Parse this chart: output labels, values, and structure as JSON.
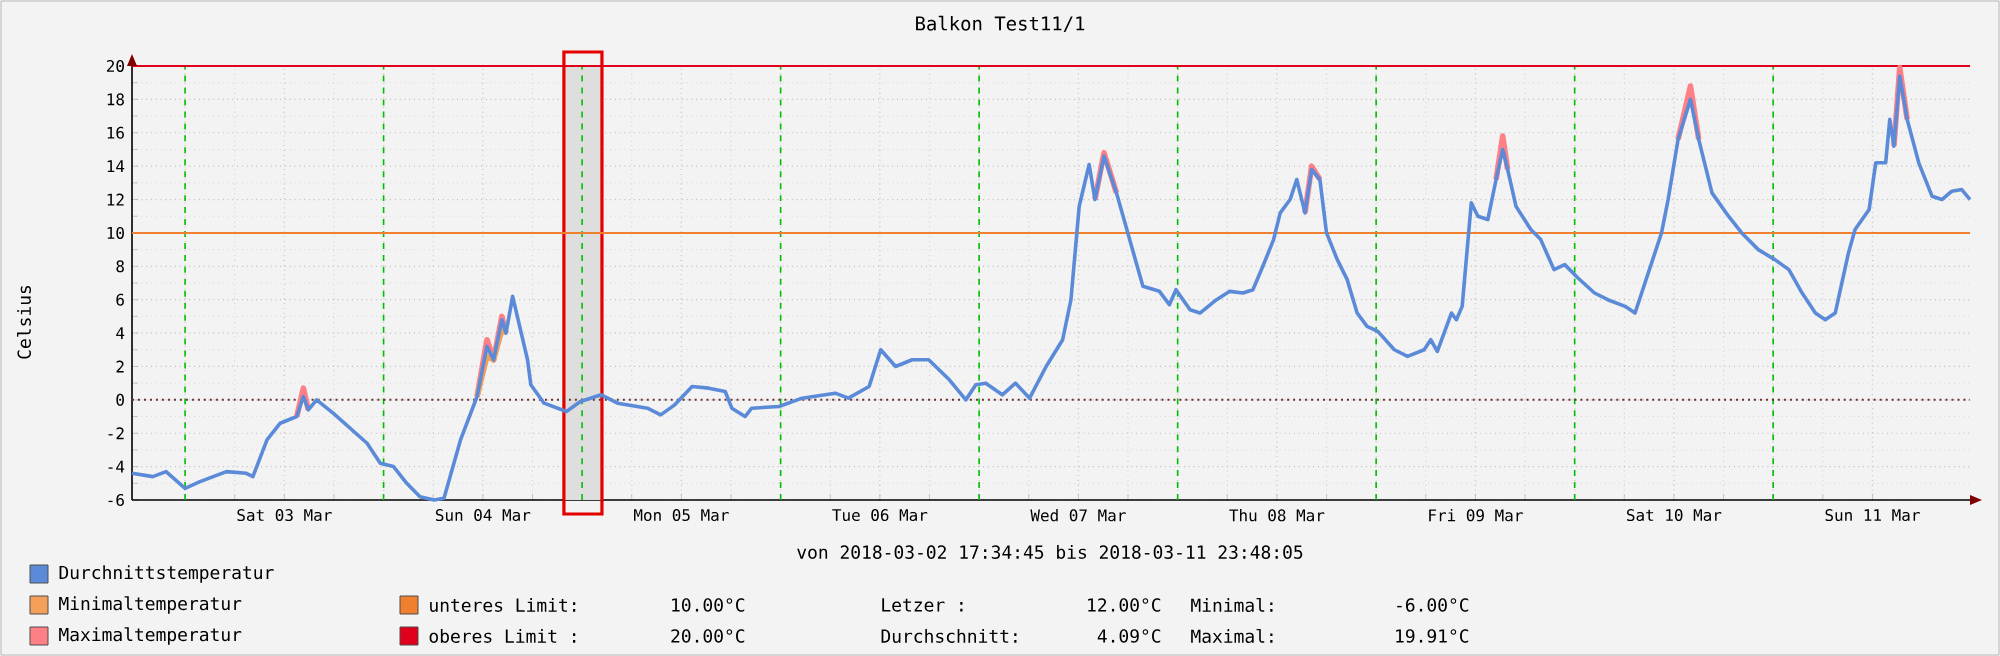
{
  "chart_data": {
    "type": "line",
    "title": "Balkon Test11/1",
    "xlabel": "von 2018-03-02 17:34:45 bis 2018-03-11 23:48:05",
    "ylabel": "Celsius",
    "x": [
      "2018-03-02T17:35",
      "2018-03-02T20:06",
      "2018-03-02T21:42",
      "2018-03-03T00:00",
      "2018-03-03T01:48",
      "2018-03-03T05:00",
      "2018-03-03T07:24",
      "2018-03-03T08:12",
      "2018-03-03T09:54",
      "2018-03-03T11:30",
      "2018-03-03T13:30",
      "2018-03-03T14:18",
      "2018-03-03T14:54",
      "2018-03-03T15:54",
      "2018-03-03T17:54",
      "2018-03-03T22:00",
      "2018-03-03T23:36",
      "2018-03-04T01:12",
      "2018-03-04T02:48",
      "2018-03-04T04:24",
      "2018-03-04T06:06",
      "2018-03-04T07:18",
      "2018-03-04T09:18",
      "2018-03-04T11:18",
      "2018-03-04T12:30",
      "2018-03-04T13:18",
      "2018-03-04T14:18",
      "2018-03-04T14:48",
      "2018-03-04T15:36",
      "2018-03-04T17:24",
      "2018-03-04T17:48",
      "2018-03-04T19:24",
      "2018-03-04T22:06",
      "2018-03-04T23:48",
      "2018-03-05T02:18",
      "2018-03-05T04:18",
      "2018-03-05T07:54",
      "2018-03-05T09:30",
      "2018-03-05T11:12",
      "2018-03-05T13:18",
      "2018-03-05T15:18",
      "2018-03-05T17:18",
      "2018-03-05T18:06",
      "2018-03-05T19:42",
      "2018-03-05T20:30",
      "2018-03-05T23:48",
      "2018-03-06T02:36",
      "2018-03-06T06:36",
      "2018-03-06T08:12",
      "2018-03-06T10:42",
      "2018-03-06T12:06",
      "2018-03-06T13:54",
      "2018-03-06T15:54",
      "2018-03-06T17:54",
      "2018-03-06T20:24",
      "2018-03-06T22:24",
      "2018-03-06T23:36",
      "2018-03-07T00:48",
      "2018-03-07T02:48",
      "2018-03-07T04:24",
      "2018-03-07T06:06",
      "2018-03-07T08:06",
      "2018-03-07T10:06",
      "2018-03-07T11:06",
      "2018-03-07T12:06",
      "2018-03-07T13:18",
      "2018-03-07T14:00",
      "2018-03-07T15:06",
      "2018-03-07T16:36",
      "2018-03-07T18:12",
      "2018-03-07T19:48",
      "2018-03-07T21:48",
      "2018-03-07T23:00",
      "2018-03-07T23:48",
      "2018-03-08T01:30",
      "2018-03-08T02:42",
      "2018-03-08T04:42",
      "2018-03-08T06:18",
      "2018-03-08T07:54",
      "2018-03-08T09:06",
      "2018-03-08T10:18",
      "2018-03-08T11:36",
      "2018-03-08T12:24",
      "2018-03-08T13:36",
      "2018-03-08T14:24",
      "2018-03-08T15:24",
      "2018-03-08T16:12",
      "2018-03-08T17:12",
      "2018-03-08T18:00",
      "2018-03-08T19:18",
      "2018-03-08T20:30",
      "2018-03-08T21:42",
      "2018-03-08T22:54",
      "2018-03-09T00:12",
      "2018-03-09T02:12",
      "2018-03-09T03:48",
      "2018-03-09T05:48",
      "2018-03-09T06:36",
      "2018-03-09T07:24",
      "2018-03-09T09:06",
      "2018-03-09T09:42",
      "2018-03-09T10:24",
      "2018-03-09T11:30",
      "2018-03-09T12:18",
      "2018-03-09T13:30",
      "2018-03-09T14:30",
      "2018-03-09T15:18",
      "2018-03-09T15:54",
      "2018-03-09T16:54",
      "2018-03-09T18:42",
      "2018-03-09T19:54",
      "2018-03-09T21:30",
      "2018-03-09T22:48",
      "2018-03-10T00:24",
      "2018-03-10T02:24",
      "2018-03-10T04:00",
      "2018-03-10T06:06",
      "2018-03-10T07:18",
      "2018-03-10T08:54",
      "2018-03-10T10:30",
      "2018-03-10T11:18",
      "2018-03-10T12:30",
      "2018-03-10T14:00",
      "2018-03-10T15:00",
      "2018-03-10T16:36",
      "2018-03-10T18:36",
      "2018-03-10T20:12",
      "2018-03-10T22:12",
      "2018-03-11T00:12",
      "2018-03-11T01:54",
      "2018-03-11T03:30",
      "2018-03-11T05:06",
      "2018-03-11T06:18",
      "2018-03-11T07:30",
      "2018-03-11T09:06",
      "2018-03-11T09:54",
      "2018-03-11T11:36",
      "2018-03-11T12:24",
      "2018-03-11T13:36",
      "2018-03-11T14:06",
      "2018-03-11T14:36",
      "2018-03-11T15:18",
      "2018-03-11T16:12",
      "2018-03-11T17:36",
      "2018-03-11T19:12",
      "2018-03-11T20:24",
      "2018-03-11T21:36",
      "2018-03-11T22:48",
      "2018-03-11T23:48"
    ],
    "series": [
      {
        "name": "Durchnittstemperatur",
        "color": "#5b8bd8",
        "values": [
          -4.4,
          -4.6,
          -4.3,
          -5.3,
          -4.9,
          -4.3,
          -4.4,
          -4.6,
          -2.4,
          -1.4,
          -1.0,
          0.2,
          -0.6,
          0,
          -0.8,
          -2.6,
          -3.8,
          -4.0,
          -5.0,
          -5.8,
          -6.0,
          -5.9,
          -2.4,
          0.2,
          3.2,
          2.4,
          4.8,
          4.0,
          6.2,
          2.4,
          0.9,
          -0.2,
          -0.7,
          -0.1,
          0.3,
          -0.2,
          -0.5,
          -0.9,
          -0.3,
          0.8,
          0.7,
          0.5,
          -0.5,
          -1.0,
          -0.5,
          -0.4,
          0.1,
          0.4,
          0.1,
          0.8,
          3.0,
          2.0,
          2.4,
          2.4,
          1.2,
          0,
          0.9,
          1.0,
          0.3,
          1.0,
          0.1,
          2.0,
          3.6,
          6.0,
          11.6,
          14.1,
          12.0,
          14.6,
          12.4,
          9.6,
          6.8,
          6.5,
          5.7,
          6.6,
          5.4,
          5.2,
          6.0,
          6.5,
          6.4,
          6.6,
          8.0,
          9.6,
          11.2,
          12.0,
          13.2,
          11.2,
          13.8,
          13.2,
          10.0,
          8.4,
          7.2,
          5.2,
          4.4,
          4.1,
          3.0,
          2.6,
          3.0,
          3.6,
          2.9,
          5.2,
          4.8,
          5.6,
          11.8,
          11.0,
          10.8,
          13.2,
          15.0,
          13.8,
          11.6,
          10.2,
          9.6,
          7.8,
          8.1,
          7.3,
          6.4,
          6.0,
          5.6,
          5.2,
          7.6,
          10.0,
          12.0,
          15.6,
          18.0,
          15.6,
          12.4,
          11.0,
          10.0,
          9.0,
          8.4,
          7.8,
          6.4,
          5.2,
          4.8,
          5.2,
          8.8,
          10.2,
          11.4,
          14.2,
          14.2,
          16.8,
          15.2,
          19.4,
          16.8,
          14.2,
          12.2,
          12.0,
          12.5,
          12.6,
          12.0
        ]
      },
      {
        "name": "Minimaltemperatur",
        "color": "#f5a05a",
        "values": [
          null,
          null,
          null,
          null,
          null,
          null,
          null,
          null,
          null,
          null,
          null,
          null,
          null,
          null,
          null,
          null,
          null,
          null,
          null,
          null,
          null,
          null,
          null,
          0.2,
          2.6,
          2.4,
          4.2,
          4.0,
          null,
          null,
          null,
          null,
          null,
          null,
          null,
          null,
          null,
          null,
          null,
          null,
          null,
          null,
          null,
          null,
          null,
          null,
          null,
          null,
          null,
          null,
          null,
          null,
          null,
          null,
          null,
          null,
          null,
          null,
          null,
          null,
          null,
          null,
          null,
          null,
          null,
          null,
          null,
          null,
          null,
          null,
          null,
          null,
          null,
          null,
          null,
          null,
          null,
          null,
          null,
          null,
          null,
          null,
          null,
          null,
          null,
          null,
          null,
          null,
          null,
          null,
          null,
          null,
          null,
          null,
          null,
          null,
          null,
          null,
          null,
          null,
          null,
          null,
          null,
          null,
          null,
          null,
          null,
          null,
          null,
          null,
          null,
          null,
          null,
          null,
          null,
          null,
          null,
          null,
          null,
          null,
          null,
          null,
          null,
          null,
          null,
          null,
          null,
          null,
          null,
          null,
          null,
          null,
          null,
          null,
          null,
          null,
          null,
          null,
          null,
          null,
          null,
          null,
          null,
          null,
          null,
          null,
          null,
          null,
          null
        ]
      },
      {
        "name": "Maximaltemperatur",
        "color": "#ff7f86",
        "values": [
          null,
          null,
          null,
          null,
          null,
          null,
          null,
          null,
          null,
          null,
          -1.0,
          0.7,
          -0.6,
          null,
          null,
          null,
          null,
          null,
          null,
          null,
          null,
          null,
          null,
          0.2,
          3.6,
          2.4,
          5.0,
          4.0,
          null,
          null,
          null,
          null,
          null,
          null,
          null,
          null,
          null,
          null,
          null,
          null,
          null,
          null,
          null,
          null,
          null,
          null,
          null,
          null,
          null,
          null,
          null,
          null,
          null,
          null,
          null,
          null,
          null,
          null,
          null,
          null,
          null,
          null,
          null,
          null,
          null,
          null,
          12.0,
          14.8,
          12.4,
          null,
          null,
          null,
          null,
          null,
          null,
          null,
          null,
          null,
          null,
          null,
          null,
          null,
          null,
          null,
          null,
          11.2,
          14.0,
          13.2,
          null,
          null,
          null,
          null,
          null,
          null,
          null,
          null,
          null,
          null,
          null,
          null,
          null,
          null,
          null,
          null,
          null,
          13.2,
          15.8,
          13.8,
          null,
          null,
          null,
          null,
          null,
          null,
          null,
          null,
          null,
          null,
          null,
          null,
          null,
          15.6,
          18.8,
          15.6,
          null,
          null,
          null,
          null,
          null,
          null,
          null,
          null,
          null,
          null,
          null,
          null,
          null,
          null,
          null,
          null,
          15.2,
          19.9,
          16.8,
          null,
          null,
          null,
          null,
          null,
          null
        ]
      }
    ],
    "xlim": [
      "2018-03-02T17:35",
      "2018-03-11T23:48"
    ],
    "xticks": [
      {
        "value": "2018-03-03T00:00",
        "label": null
      },
      {
        "value": "2018-03-03T12:00",
        "label": "Sat 03 Mar"
      },
      {
        "value": "2018-03-04T00:00",
        "label": null
      },
      {
        "value": "2018-03-04T12:00",
        "label": "Sun 04 Mar"
      },
      {
        "value": "2018-03-05T00:00",
        "label": null
      },
      {
        "value": "2018-03-05T12:00",
        "label": "Mon 05 Mar"
      },
      {
        "value": "2018-03-06T00:00",
        "label": null
      },
      {
        "value": "2018-03-06T12:00",
        "label": "Tue 06 Mar"
      },
      {
        "value": "2018-03-07T00:00",
        "label": null
      },
      {
        "value": "2018-03-07T12:00",
        "label": "Wed 07 Mar"
      },
      {
        "value": "2018-03-08T00:00",
        "label": null
      },
      {
        "value": "2018-03-08T12:00",
        "label": "Thu 08 Mar"
      },
      {
        "value": "2018-03-09T00:00",
        "label": null
      },
      {
        "value": "2018-03-09T12:00",
        "label": "Fri 09 Mar"
      },
      {
        "value": "2018-03-10T00:00",
        "label": null
      },
      {
        "value": "2018-03-10T12:00",
        "label": "Sat 10 Mar"
      },
      {
        "value": "2018-03-11T00:00",
        "label": null
      },
      {
        "value": "2018-03-11T12:00",
        "label": "Sun 11 Mar"
      }
    ],
    "ylim": [
      -6,
      20
    ],
    "yticks": [
      -6,
      -4,
      -2,
      0,
      2,
      4,
      6,
      8,
      10,
      12,
      14,
      16,
      18,
      20
    ],
    "ref_lines": [
      {
        "axis": "y",
        "value": 10,
        "label": "unteres Limit:",
        "color": "#f07f30"
      },
      {
        "axis": "y",
        "value": 20,
        "label": "oberes Limit :",
        "color": "#e0001c"
      },
      {
        "axis": "y",
        "value": 0,
        "color": "#6a3030",
        "line_style": "dotted"
      }
    ],
    "bands": [
      {
        "axis": "x",
        "from": "2018-03-04T21:48",
        "to": "2018-03-05T02:24",
        "color": "#dedede"
      }
    ],
    "annotations": [
      "10.00°C",
      "20.00°C",
      "Letzer      :",
      "12.00°C",
      "Durchschnitt:",
      "4.09°C",
      "Minimal:",
      "-6.00°C",
      "Maximal:",
      "19.91°C"
    ],
    "grid": true,
    "legend": "bottom left",
    "marker": "none",
    "line_style": "solid"
  }
}
